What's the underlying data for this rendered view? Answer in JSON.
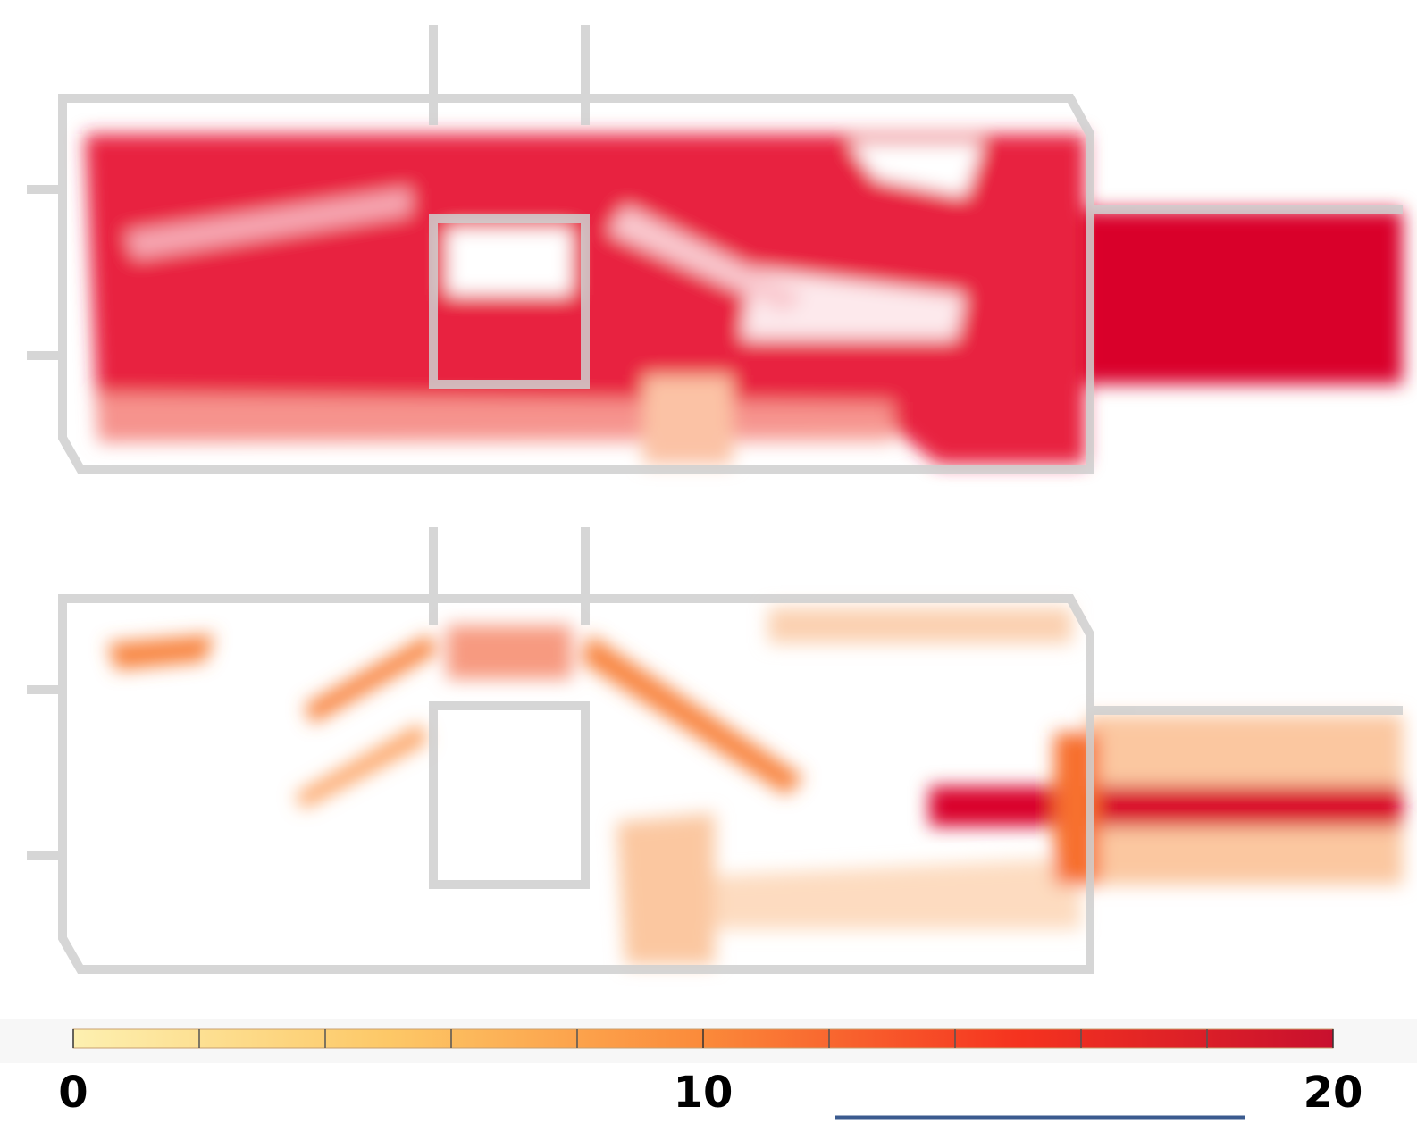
{
  "chart_data": {
    "type": "colorbar",
    "clim": [
      0,
      20
    ],
    "ticks": [
      0,
      10,
      20
    ],
    "minor_ticks": [
      2,
      4,
      6,
      8,
      12,
      14,
      16,
      18
    ],
    "colors": [
      "#fdf0b0",
      "#fdc867",
      "#fb8a3a",
      "#f5331f",
      "#c8102e"
    ]
  }
}
